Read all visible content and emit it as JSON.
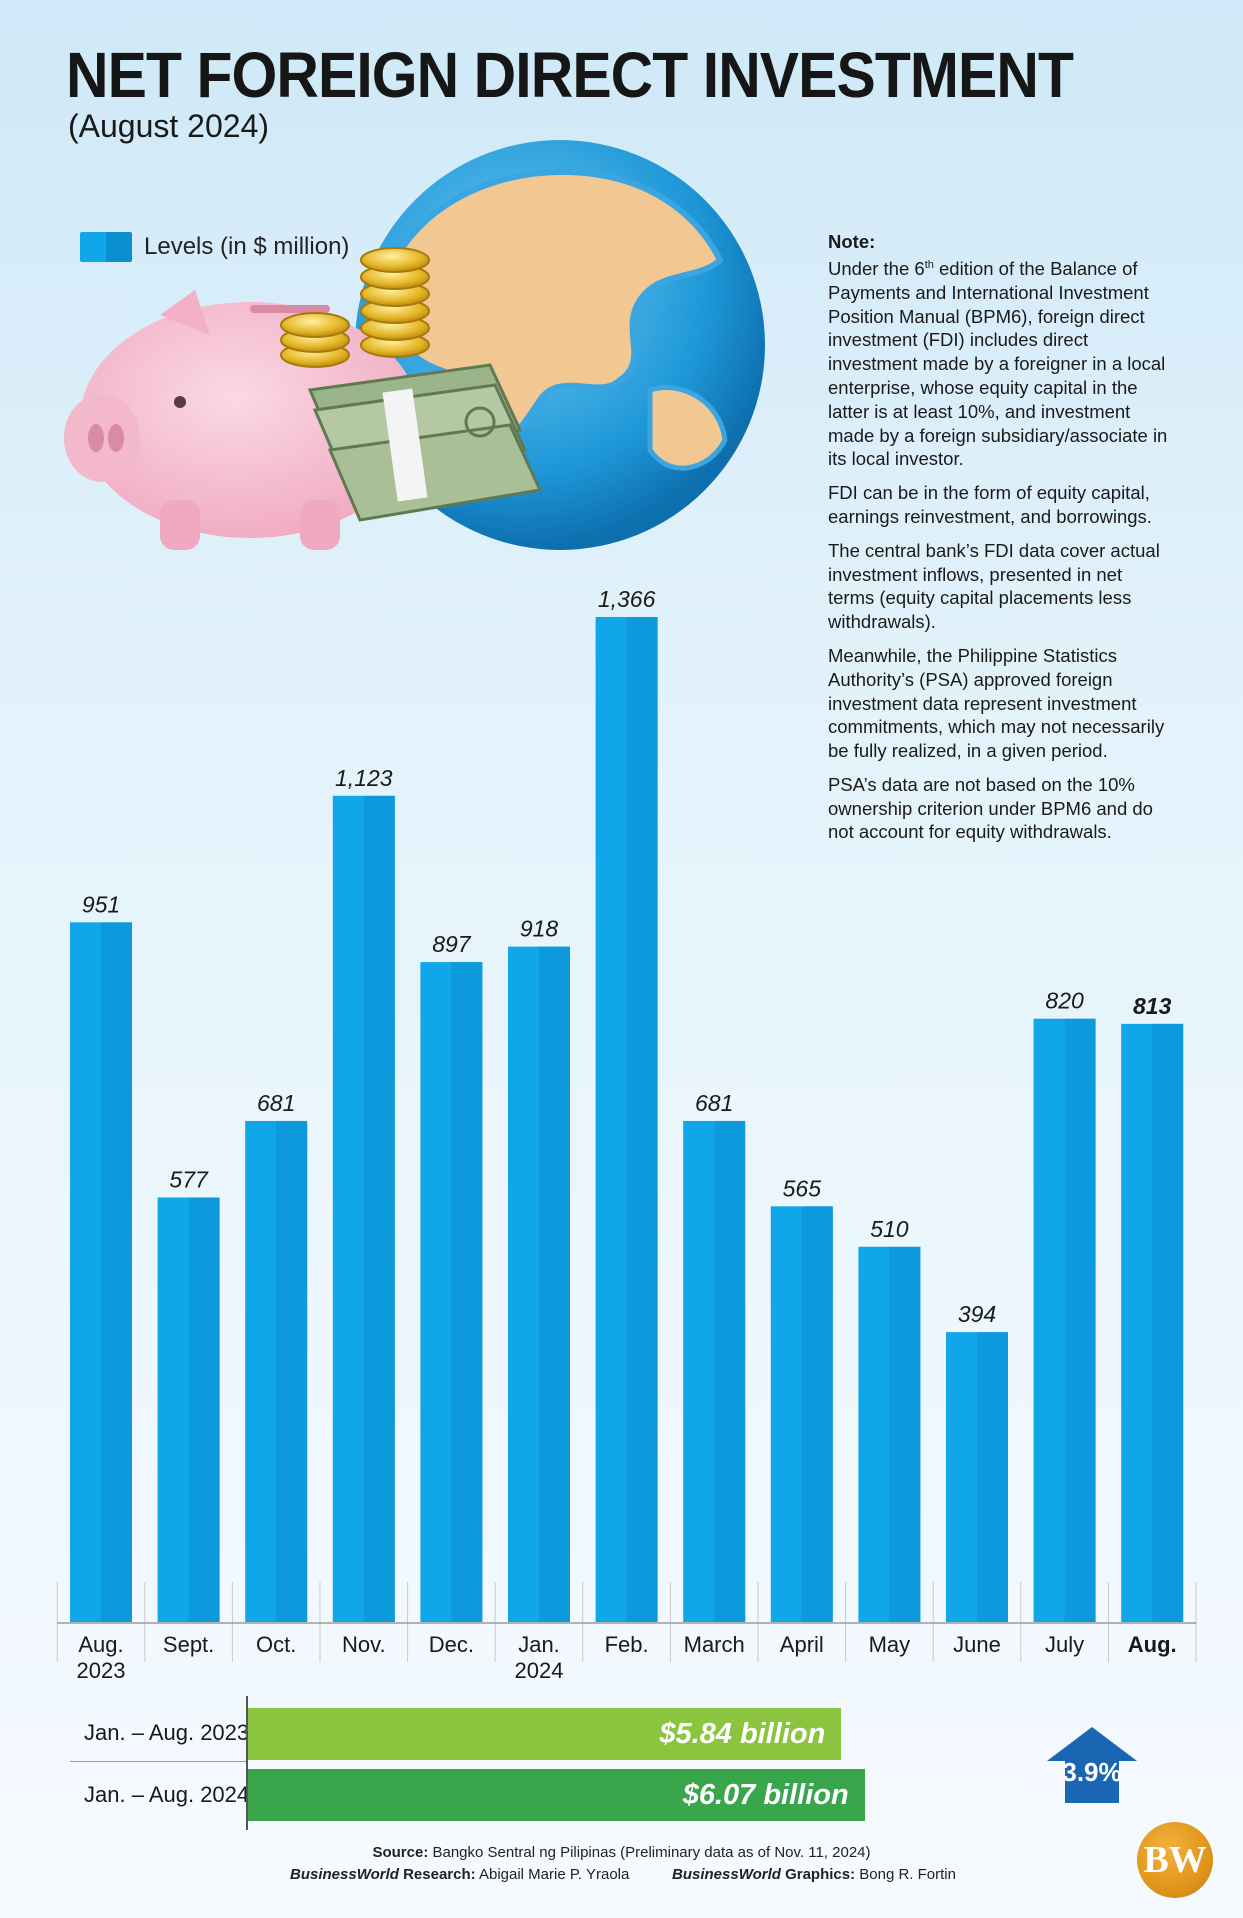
{
  "title": "NET FOREIGN DIRECT INVESTMENT",
  "subtitle": "(August 2024)",
  "legend": {
    "label": "Levels (in $ million)",
    "color": "#10a6ea"
  },
  "note": {
    "heading": "Note",
    "paragraph1_pre": "Under the 6",
    "paragraph1_sup": "th",
    "paragraph1_post": " edition of the Balance of Payments and International Investment Position Manual (BPM6), foreign direct investment (FDI) includes direct investment made by a foreigner in a local enterprise, whose equity capital in the latter is at least 10%, and investment made by a foreign subsidiary/associate in its local investor.",
    "paragraph2": "FDI can be in the form of equity capital, earnings reinvestment, and borrowings.",
    "paragraph3": "The central bank’s FDI data cover actual investment inflows, presented in net terms (equity capital placements less withdrawals).",
    "paragraph4": "Meanwhile, the Philippine Statistics Authority’s (PSA) approved foreign investment data represent investment commitments, which may not necessarily be fully realized, in a given period.",
    "paragraph5": "PSA’s data are not based on the 10% ownership criterion under BPM6 and do not account for equity withdrawals."
  },
  "chart_data": [
    {
      "type": "bar",
      "title": "NET FOREIGN DIRECT INVESTMENT",
      "subtitle": "(August 2024)",
      "categories": [
        [
          "Aug.",
          "2023"
        ],
        [
          "Sept."
        ],
        [
          "Oct."
        ],
        [
          "Nov."
        ],
        [
          "Dec."
        ],
        [
          "Jan.",
          "2024"
        ],
        [
          "Feb."
        ],
        [
          "March"
        ],
        [
          "April"
        ],
        [
          "May"
        ],
        [
          "June"
        ],
        [
          "July"
        ],
        [
          "Aug."
        ]
      ],
      "series": [
        {
          "name": "Levels (in $ million)",
          "values": [
            951,
            577,
            681,
            1123,
            897,
            918,
            1366,
            681,
            565,
            510,
            394,
            820,
            813
          ],
          "labels": [
            "951",
            "577",
            "681",
            "1,123",
            "897",
            "918",
            "1,366",
            "681",
            "565",
            "510",
            "394",
            "820",
            "813"
          ]
        }
      ],
      "ylim": [
        0,
        1400
      ],
      "grid": false,
      "legend_position": "top-left",
      "highlight_last": true
    },
    {
      "type": "bar",
      "orientation": "horizontal",
      "categories": [
        "Jan. – Aug. 2023",
        "Jan. – Aug. 2024"
      ],
      "values": [
        5.84,
        6.07
      ],
      "labels": [
        "$5.84 billion",
        "$6.07 billion"
      ],
      "colors": [
        "#8bc53f",
        "#3aa64b"
      ],
      "change_label": "3.9%",
      "change_color": "#1b66b3"
    }
  ],
  "source": {
    "label": "Source:",
    "text": " Bangko Sentral ng Pilipinas (Preliminary data as of Nov. 11, 2024)"
  },
  "credits": {
    "research_brand": "BusinessWorld",
    "research_label": " Research:",
    "research_name": " Abigail Marie P. Yraola",
    "graphics_brand": "BusinessWorld",
    "graphics_label": " Graphics:",
    "graphics_name": " Bong R. Fortin"
  },
  "logo": {
    "text": "BW",
    "color": "#e2951c"
  }
}
